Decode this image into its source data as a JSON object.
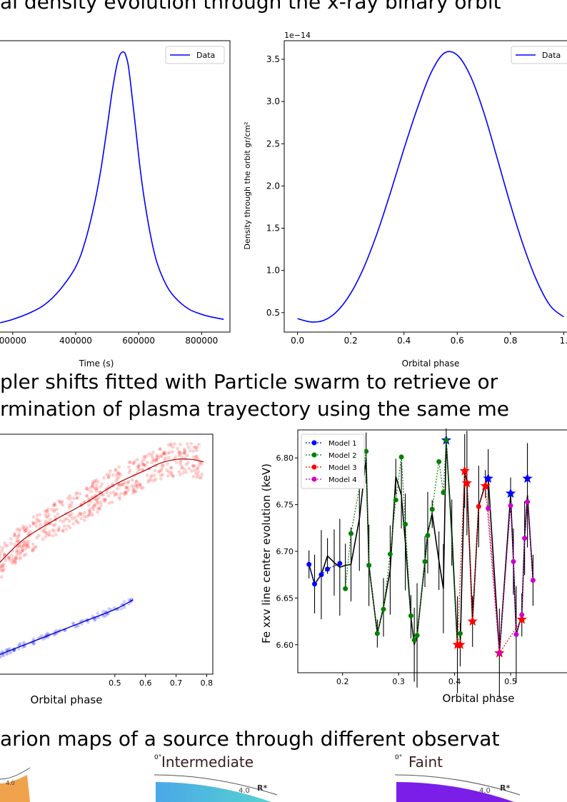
{
  "headings": {
    "h1": "al density evolution through the x-ray binary orbit",
    "h2": "pler shifts fitted with Particle swarm to retrieve or",
    "h3": "rmination of plasma trayectory using the same me",
    "h4": "arion maps of a source through different observat"
  },
  "map_labels": {
    "intermediate_title": "Intermediate",
    "faint_title": "Faint",
    "radius_value": "4.0",
    "radius_symbol": "R*",
    "angle_label": "0°",
    "colors": {
      "orange": "#f0a24c",
      "intermediate": "#4aa8e8",
      "intermediate_right": "#57d2d0",
      "faint": "#7b1ee8"
    }
  },
  "chart_data": [
    {
      "id": "density_time",
      "type": "line",
      "xlabel": "Time (s)",
      "ylabel": "",
      "x_ticks": [
        "00000",
        "400000",
        "600000",
        "800000"
      ],
      "xlim": [
        155000,
        890000
      ],
      "ylim": [
        0.28,
        3.72
      ],
      "series": [
        {
          "name": "Data",
          "color": "#0000ff",
          "x": [
            160000,
            200000,
            250000,
            300000,
            350000,
            400000,
            430000,
            460000,
            480000,
            500000,
            515000,
            530000,
            540000,
            548000,
            553000,
            558000,
            566000,
            575000,
            590000,
            605000,
            620000,
            640000,
            660000,
            690000,
            720000,
            760000,
            800000,
            830000,
            870000
          ],
          "y": [
            0.39,
            0.43,
            0.5,
            0.6,
            0.78,
            1.05,
            1.35,
            1.8,
            2.2,
            2.7,
            3.1,
            3.42,
            3.55,
            3.585,
            3.585,
            3.56,
            3.45,
            3.2,
            2.7,
            2.2,
            1.8,
            1.38,
            1.08,
            0.82,
            0.67,
            0.55,
            0.49,
            0.46,
            0.43
          ]
        }
      ],
      "legend": "top-right"
    },
    {
      "id": "density_phase",
      "type": "line",
      "xlabel": "Orbital phase",
      "ylabel": "Density through the orbit gr/cm²",
      "offset_label": "1e−14",
      "x_ticks": [
        "0.0",
        "0.2",
        "0.4",
        "0.6",
        "0.8",
        "1."
      ],
      "y_ticks": [
        "0.5",
        "1.0",
        "1.5",
        "2.0",
        "2.5",
        "3.0",
        "3.5"
      ],
      "xlim": [
        -0.05,
        1.05
      ],
      "ylim": [
        0.27,
        3.72
      ],
      "series": [
        {
          "name": "Data",
          "color": "#0000ff",
          "x": [
            0.0,
            0.05,
            0.1,
            0.15,
            0.2,
            0.25,
            0.3,
            0.35,
            0.4,
            0.45,
            0.5,
            0.55,
            0.6,
            0.65,
            0.7,
            0.75,
            0.8,
            0.85,
            0.9,
            0.95,
            1.0
          ],
          "y": [
            0.43,
            0.39,
            0.41,
            0.52,
            0.73,
            1.04,
            1.45,
            1.93,
            2.44,
            2.92,
            3.33,
            3.57,
            3.55,
            3.3,
            2.87,
            2.33,
            1.78,
            1.28,
            0.87,
            0.58,
            0.45
          ]
        }
      ],
      "legend": "top-right"
    },
    {
      "id": "doppler_fit",
      "type": "scatter",
      "xlabel": "Orbital phase",
      "x_ticks": [
        "0.5",
        "0.6",
        "0.7",
        "0.8"
      ],
      "xlim": [
        0.12,
        0.82
      ],
      "ylim": [
        0,
        1
      ],
      "series": [
        {
          "color": "#ff0000",
          "x": [
            0.12,
            0.2,
            0.3,
            0.4,
            0.5,
            0.6,
            0.65,
            0.7,
            0.75,
            0.79
          ],
          "y": [
            0.46,
            0.56,
            0.64,
            0.71,
            0.79,
            0.85,
            0.88,
            0.895,
            0.895,
            0.885
          ]
        },
        {
          "color": "#0000ff",
          "x": [
            0.12,
            0.2,
            0.3,
            0.4,
            0.5,
            0.56
          ],
          "y": [
            0.08,
            0.12,
            0.17,
            0.22,
            0.27,
            0.31
          ]
        }
      ]
    },
    {
      "id": "fe_line",
      "type": "line",
      "xlabel": "Orbital phase",
      "ylabel": "Fe xxv line center evolution (keV)",
      "x_ticks": [
        "0.2",
        "0.3",
        "0.4",
        "0.5"
      ],
      "y_ticks": [
        "6.60",
        "6.65",
        "6.70",
        "6.75",
        "6.80"
      ],
      "xlim": [
        0.12,
        0.63
      ],
      "ylim": [
        6.57,
        6.83
      ],
      "legend": "top-left",
      "series": [
        {
          "name": "Model 1",
          "color": "#0000ff",
          "x": [
            0.14,
            0.15,
            0.162,
            0.173,
            0.195
          ],
          "y": [
            6.686,
            6.665,
            6.675,
            6.681,
            6.687
          ],
          "stars_x": [
            0.385,
            0.46,
            0.5,
            0.53
          ],
          "stars_y": [
            6.819,
            6.778,
            6.762,
            6.778
          ]
        },
        {
          "name": "Model 2",
          "color": "#008000",
          "x": [
            0.205,
            0.215,
            0.242,
            0.247,
            0.262,
            0.273,
            0.285,
            0.295,
            0.305,
            0.312,
            0.322,
            0.328,
            0.333,
            0.347,
            0.352,
            0.36,
            0.372,
            0.38,
            0.385,
            0.405,
            0.41
          ],
          "y": [
            6.66,
            6.719,
            6.807,
            6.685,
            6.612,
            6.638,
            6.697,
            6.755,
            6.801,
            6.729,
            6.631,
            6.605,
            6.61,
            6.689,
            6.717,
            6.745,
            6.796,
            6.763,
            6.819,
            6.6,
            6.612
          ]
        },
        {
          "name": "Model 3",
          "color": "#ff0000",
          "x": [
            0.405,
            0.418,
            0.422,
            0.432,
            0.443,
            0.455,
            0.48,
            0.52
          ],
          "y": [
            6.6,
            6.786,
            6.773,
            6.625,
            6.748,
            6.77,
            6.591,
            6.627
          ],
          "stars_x": [
            0.405,
            0.41,
            0.418,
            0.422,
            0.432,
            0.455,
            0.48,
            0.52
          ],
          "stars_y": [
            6.6,
            6.6,
            6.786,
            6.773,
            6.625,
            6.77,
            6.591,
            6.627
          ]
        },
        {
          "name": "Model 4",
          "color": "#cc00cc",
          "x": [
            0.46,
            0.48,
            0.5,
            0.505,
            0.51,
            0.52,
            0.525,
            0.53,
            0.54
          ],
          "y": [
            6.746,
            6.591,
            6.749,
            6.689,
            6.611,
            6.632,
            6.714,
            6.753,
            6.669
          ]
        },
        {
          "name": "",
          "color": "#000000",
          "x": [
            0.14,
            0.15,
            0.162,
            0.173,
            0.185,
            0.195,
            0.205,
            0.215,
            0.23,
            0.242,
            0.247,
            0.262,
            0.273,
            0.285,
            0.295,
            0.305,
            0.312,
            0.322,
            0.328,
            0.333,
            0.347,
            0.352,
            0.36,
            0.372,
            0.38,
            0.385,
            0.395,
            0.405,
            0.41,
            0.418,
            0.422,
            0.432,
            0.443,
            0.455,
            0.46,
            0.48,
            0.5,
            0.505,
            0.51,
            0.52,
            0.525,
            0.53,
            0.54
          ],
          "y": [
            6.686,
            6.665,
            6.675,
            6.695,
            6.688,
            6.683,
            6.685,
            6.686,
            6.735,
            6.8,
            6.685,
            6.612,
            6.64,
            6.68,
            6.78,
            6.76,
            6.71,
            6.63,
            6.6,
            6.61,
            6.689,
            6.72,
            6.74,
            6.69,
            6.66,
            6.818,
            6.72,
            6.6,
            6.6,
            6.786,
            6.773,
            6.625,
            6.748,
            6.772,
            6.778,
            6.591,
            6.76,
            6.689,
            6.611,
            6.632,
            6.714,
            6.76,
            6.669
          ]
        }
      ]
    }
  ]
}
